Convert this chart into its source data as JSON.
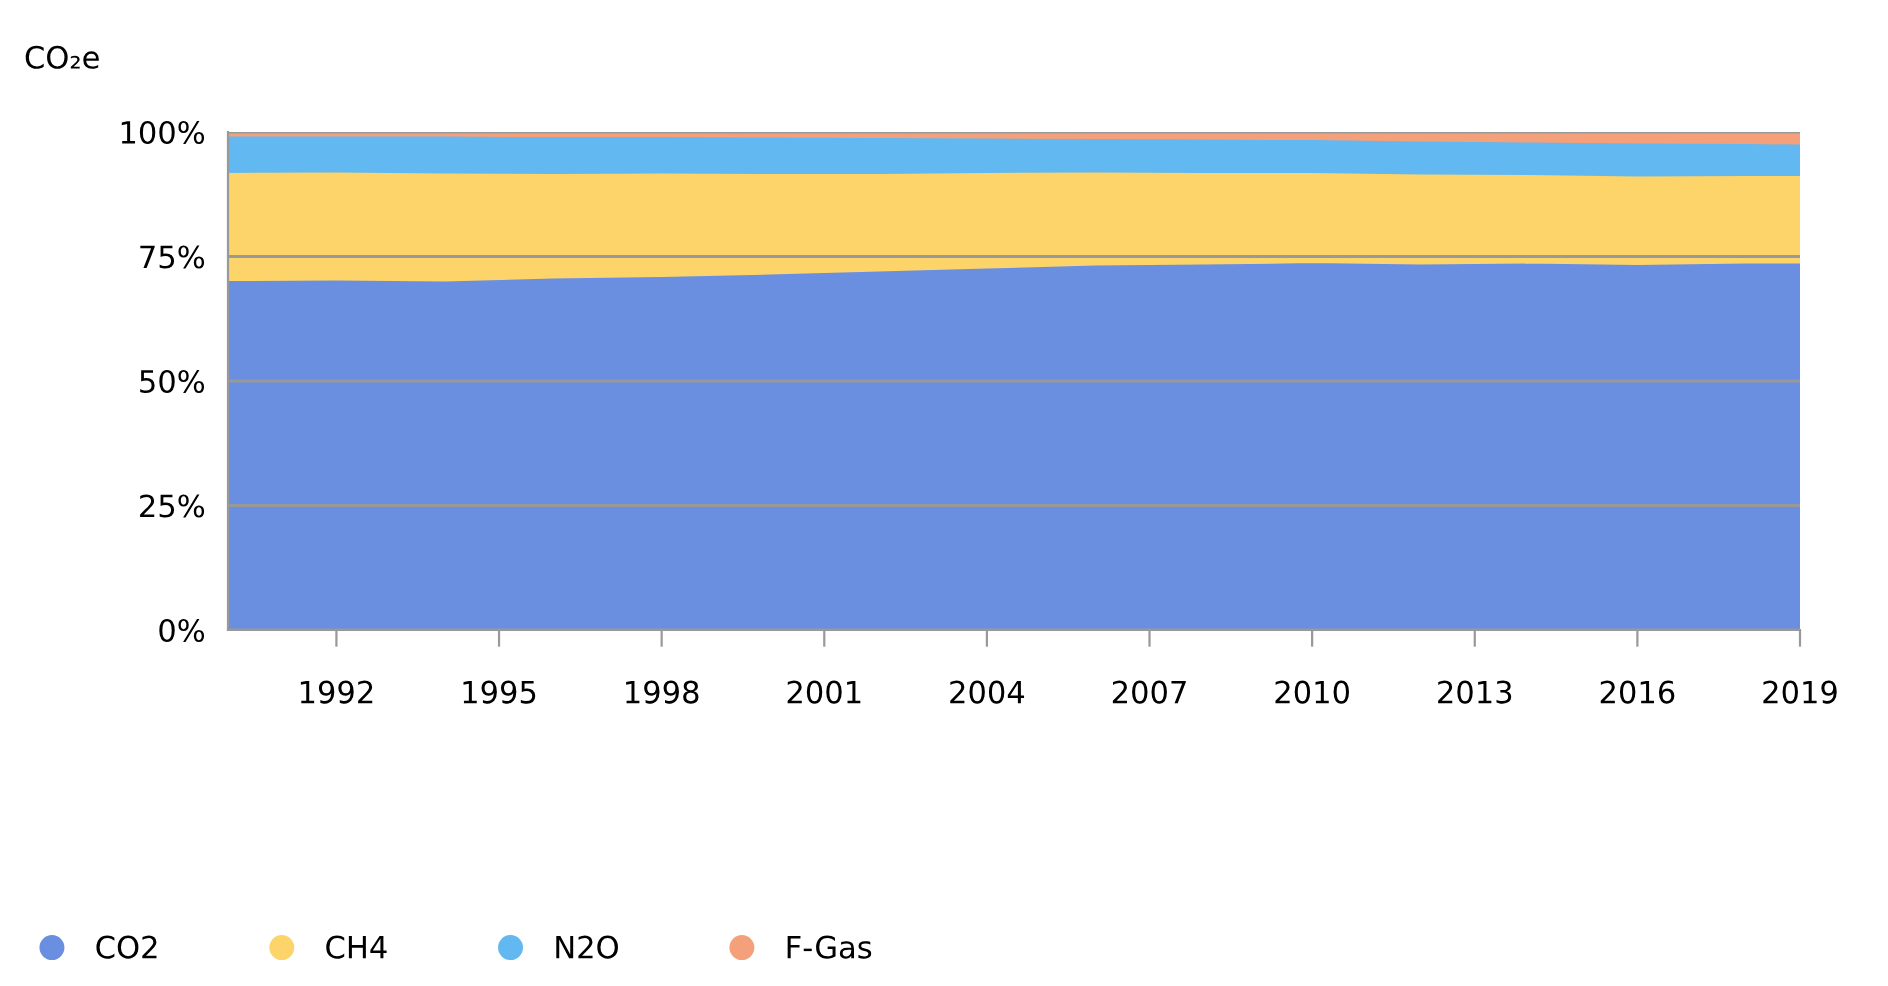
{
  "chart_data": {
    "type": "area",
    "stacked": true,
    "ylabel": "CO₂e",
    "xlim": [
      1990,
      2019
    ],
    "xticks": [
      1992,
      1995,
      1998,
      2001,
      2004,
      2007,
      2010,
      2013,
      2016,
      2019
    ],
    "ylim": [
      0,
      100
    ],
    "yticks": [
      {
        "value": 0,
        "label": "0%"
      },
      {
        "value": 25,
        "label": "25%"
      },
      {
        "value": 50,
        "label": "50%"
      },
      {
        "value": 75,
        "label": "75%"
      },
      {
        "value": 100,
        "label": "100%"
      }
    ],
    "grid": "y",
    "legend": "bottom left",
    "x": [
      1990,
      1992,
      1994,
      1996,
      1998,
      2000,
      2002,
      2004,
      2006,
      2008,
      2010,
      2012,
      2014,
      2016,
      2018,
      2019
    ],
    "series": [
      {
        "name": "CO2",
        "color": "#6a8ee0",
        "values": [
          70.3,
          70.4,
          70.2,
          70.8,
          71.1,
          71.6,
          72.2,
          72.8,
          73.4,
          73.6,
          73.9,
          73.6,
          73.8,
          73.5,
          73.8,
          73.8
        ]
      },
      {
        "name": "CH4",
        "color": "#fcd46a",
        "values": [
          21.7,
          21.7,
          21.7,
          21.0,
          20.8,
          20.2,
          19.6,
          19.2,
          18.7,
          18.4,
          18.1,
          18.1,
          17.8,
          17.8,
          17.6,
          17.6
        ]
      },
      {
        "name": "N2O",
        "color": "#62b8f0",
        "values": [
          7.3,
          7.2,
          7.4,
          7.4,
          7.3,
          7.3,
          7.2,
          6.9,
          6.7,
          6.7,
          6.6,
          6.6,
          6.5,
          6.6,
          6.4,
          6.3
        ]
      },
      {
        "name": "F-Gas",
        "color": "#f4a07a",
        "values": [
          0.7,
          0.7,
          0.7,
          0.8,
          0.8,
          0.9,
          1.0,
          1.1,
          1.2,
          1.3,
          1.4,
          1.7,
          1.9,
          2.1,
          2.2,
          2.3
        ]
      }
    ]
  }
}
